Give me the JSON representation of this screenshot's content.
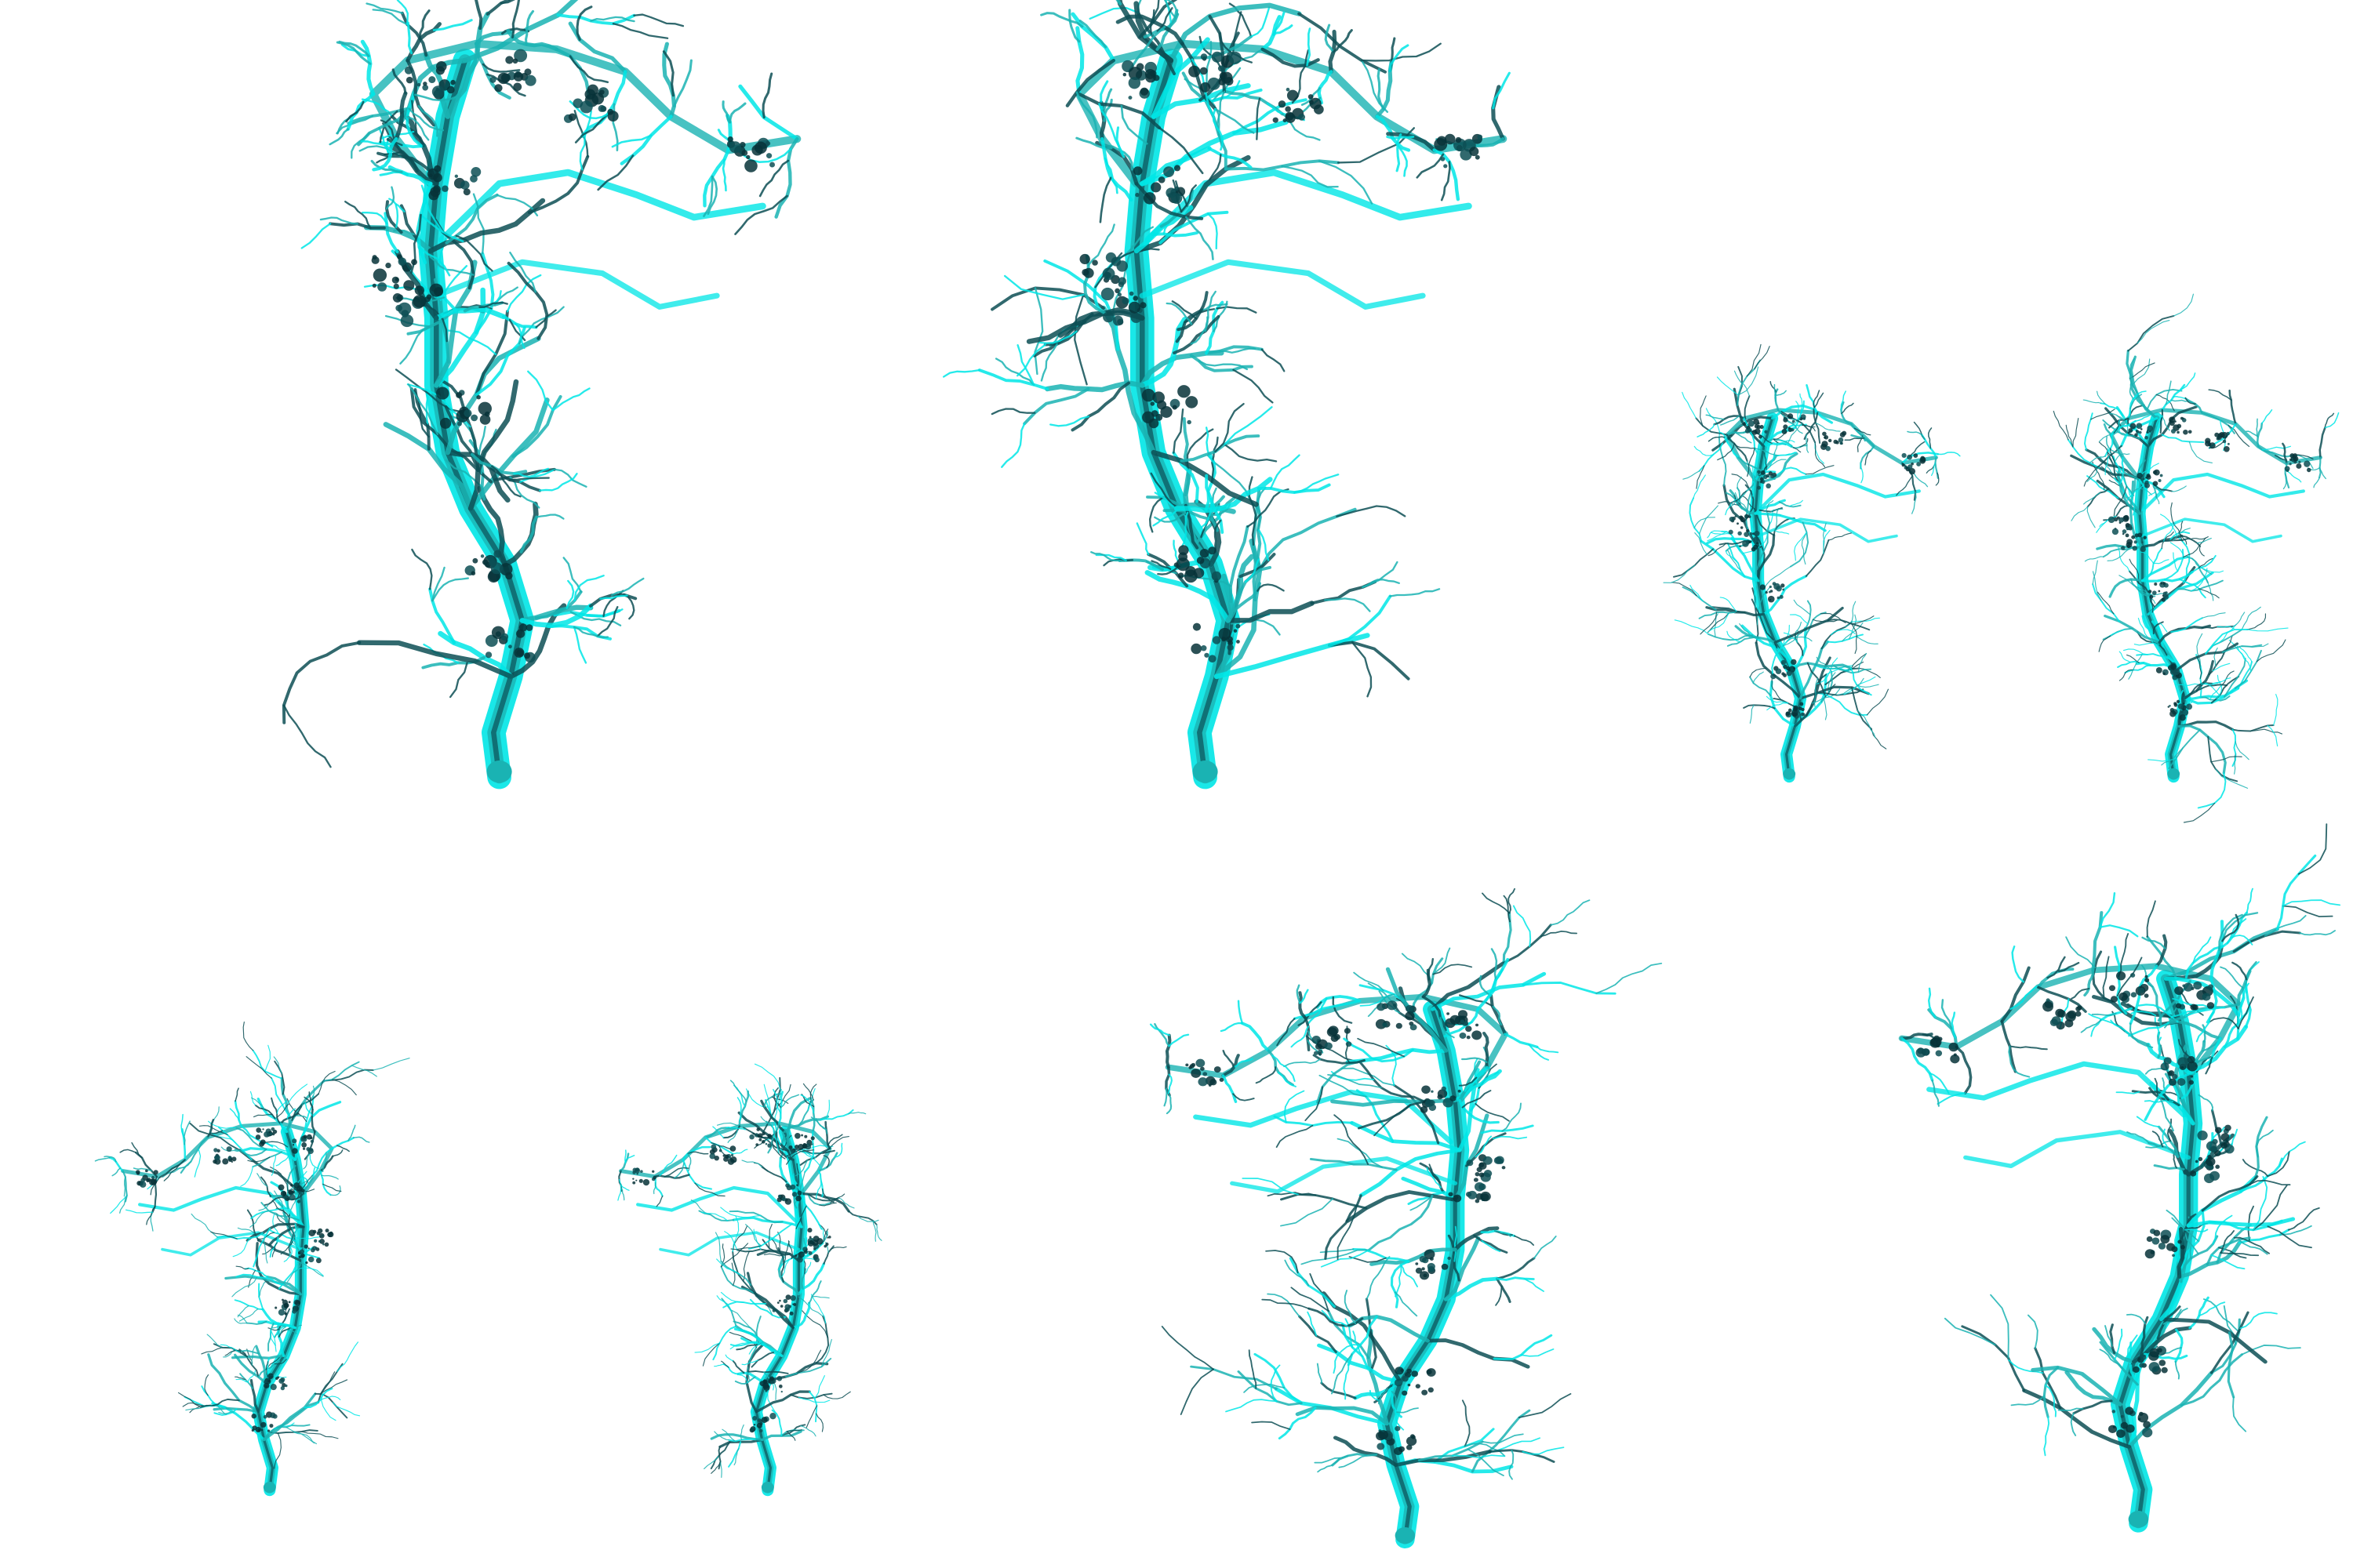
{
  "background_color": "#ffffff",
  "colors": {
    "cyan_bright": "#00e6e6",
    "cyan_mid": "#1ab3b3",
    "teal_dark": "#0d4f55",
    "teal_deep": "#073338"
  },
  "renders": [
    {
      "label_id": "render-1",
      "flipped": false
    },
    {
      "label_id": "render-2",
      "flipped": false
    },
    {
      "label_id": "render-3",
      "flipped": false
    },
    {
      "label_id": "render-4",
      "flipped": false
    },
    {
      "label_id": "render-5",
      "flipped": true
    },
    {
      "label_id": "render-6",
      "flipped": true
    },
    {
      "label_id": "render-7",
      "flipped": true
    },
    {
      "label_id": "render-8",
      "flipped": true
    }
  ]
}
